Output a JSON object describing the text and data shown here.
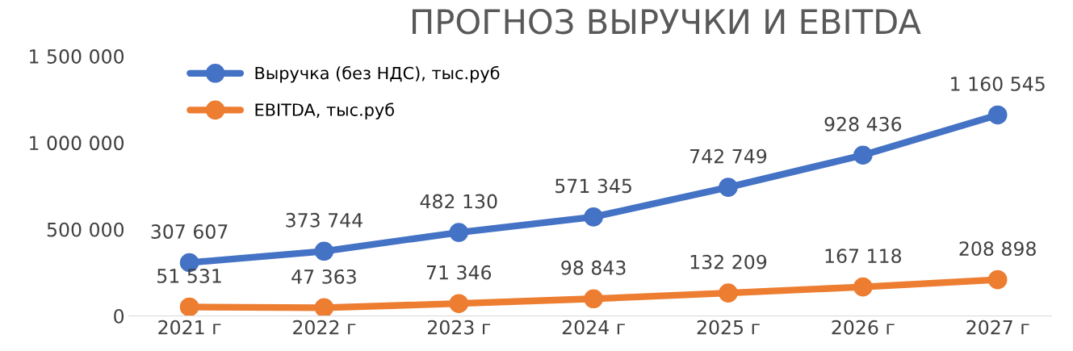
{
  "chart_data": {
    "type": "line",
    "title": "ПРОГНОЗ ВЫРУЧКИ И EBITDA",
    "categories": [
      "2021 г",
      "2022 г",
      "2023 г",
      "2024 г",
      "2025 г",
      "2026 г",
      "2027 г"
    ],
    "series": [
      {
        "name": "Выручка (без НДС), тыс.руб",
        "color": "#4472c4",
        "values": [
          307607,
          373744,
          482130,
          571345,
          742749,
          928436,
          1160545
        ],
        "value_labels": [
          "307 607",
          "373 744",
          "482 130",
          "571 345",
          "742 749",
          "928 436",
          "1 160 545"
        ]
      },
      {
        "name": "EBITDA, тыс.руб",
        "color": "#ed7d31",
        "values": [
          51531,
          47363,
          71346,
          98843,
          132209,
          167118,
          208898
        ],
        "value_labels": [
          "51 531",
          "47 363",
          "71 346",
          "98 843",
          "132 209",
          "167 118",
          "208 898"
        ]
      }
    ],
    "ylim": [
      0,
      1500000
    ],
    "yticks": [
      {
        "value": 0,
        "label": "0"
      },
      {
        "value": 500000,
        "label": "500 000"
      },
      {
        "value": 1000000,
        "label": "1 000 000"
      },
      {
        "value": 1500000,
        "label": "1 500 000"
      }
    ],
    "grid": false,
    "legend": "top left",
    "marker": "circle",
    "line_style": "solid"
  }
}
